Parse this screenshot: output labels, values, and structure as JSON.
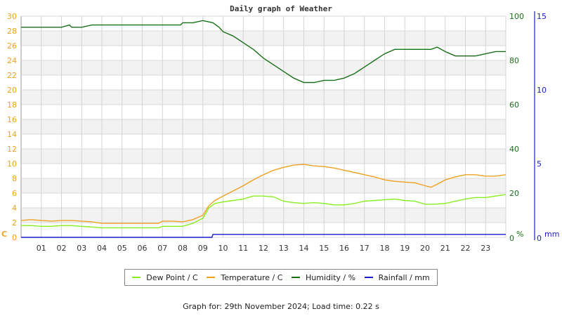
{
  "chart_data": {
    "type": "line",
    "title": "Daily graph of Weather",
    "xlabel": "",
    "x_ticks": [
      "01",
      "02",
      "03",
      "04",
      "05",
      "06",
      "07",
      "08",
      "09",
      "10",
      "11",
      "12",
      "13",
      "14",
      "15",
      "16",
      "17",
      "18",
      "19",
      "20",
      "21",
      "22",
      "23"
    ],
    "x_range_hours": [
      0,
      24
    ],
    "axes": {
      "left": {
        "label": "C",
        "ticks": [
          0,
          2,
          4,
          6,
          8,
          10,
          12,
          14,
          16,
          18,
          20,
          22,
          24,
          26,
          28,
          30
        ],
        "ylim": [
          0,
          30
        ],
        "color": "#f0a020"
      },
      "humidity": {
        "label": "%",
        "ticks": [
          0,
          20,
          40,
          60,
          80,
          100
        ],
        "ylim": [
          0,
          100
        ],
        "color": "#1a6e1a"
      },
      "rainfall": {
        "label": "mm",
        "ticks": [
          0,
          5,
          10,
          15
        ],
        "ylim": [
          0,
          15
        ],
        "color": "#1a1acc"
      }
    },
    "grid": true,
    "legend_position": "bottom",
    "series": [
      {
        "name": "Dew Point / C",
        "color": "#88ee22",
        "axis": "left",
        "x": [
          0,
          0.5,
          1,
          1.5,
          2,
          2.5,
          3,
          3.5,
          4,
          5,
          6,
          6.8,
          7,
          7.5,
          8,
          8.5,
          9,
          9.3,
          9.6,
          10,
          10.5,
          11,
          11.5,
          12,
          12.5,
          13,
          13.5,
          14,
          14.5,
          15,
          15.5,
          16,
          16.5,
          17,
          17.5,
          18,
          18.5,
          19,
          19.5,
          20,
          20.5,
          21,
          21.5,
          22,
          22.5,
          23,
          23.5,
          24
        ],
        "values": [
          1.6,
          1.6,
          1.5,
          1.5,
          1.6,
          1.6,
          1.5,
          1.4,
          1.3,
          1.3,
          1.3,
          1.3,
          1.5,
          1.5,
          1.5,
          1.9,
          2.6,
          4.0,
          4.6,
          4.8,
          5.0,
          5.2,
          5.6,
          5.6,
          5.5,
          4.9,
          4.7,
          4.6,
          4.7,
          4.6,
          4.4,
          4.4,
          4.6,
          4.9,
          5.0,
          5.1,
          5.2,
          5.0,
          4.9,
          4.5,
          4.5,
          4.6,
          4.9,
          5.2,
          5.4,
          5.4,
          5.6,
          5.8
        ]
      },
      {
        "name": "Temperature / C",
        "color": "#f0a020",
        "axis": "left",
        "x": [
          0,
          0.5,
          1,
          1.5,
          2,
          2.5,
          3,
          3.5,
          4,
          5,
          6,
          6.8,
          7,
          7.5,
          8,
          8.5,
          9,
          9.3,
          9.6,
          10,
          10.5,
          11,
          11.5,
          12,
          12.5,
          13,
          13.5,
          14,
          14.5,
          15,
          15.5,
          16,
          16.5,
          17,
          17.5,
          18,
          18.5,
          19,
          19.5,
          20,
          20.3,
          20.6,
          21,
          21.5,
          22,
          22.5,
          23,
          23.5,
          24
        ],
        "values": [
          2.3,
          2.4,
          2.3,
          2.2,
          2.3,
          2.3,
          2.2,
          2.1,
          1.9,
          1.9,
          1.9,
          1.9,
          2.2,
          2.2,
          2.1,
          2.4,
          3.0,
          4.3,
          5.0,
          5.6,
          6.3,
          7.0,
          7.8,
          8.5,
          9.1,
          9.5,
          9.8,
          9.9,
          9.7,
          9.6,
          9.4,
          9.1,
          8.8,
          8.5,
          8.2,
          7.8,
          7.6,
          7.5,
          7.4,
          7.0,
          6.8,
          7.2,
          7.8,
          8.2,
          8.5,
          8.5,
          8.3,
          8.3,
          8.5
        ]
      },
      {
        "name": "Humidity / %",
        "color": "#1a6e1a",
        "axis": "humidity",
        "x": [
          0,
          1,
          2,
          2.4,
          2.5,
          3,
          3.5,
          4,
          5,
          6,
          7,
          7.9,
          8,
          8.5,
          9,
          9.5,
          9.8,
          10,
          10.5,
          11,
          11.5,
          12,
          12.5,
          13,
          13.5,
          14,
          14.5,
          15,
          15.5,
          16,
          16.5,
          17,
          17.5,
          18,
          18.5,
          19,
          19.5,
          20,
          20.3,
          20.6,
          21,
          21.5,
          22,
          22.5,
          23,
          23.5,
          24
        ],
        "values": [
          95,
          95,
          95,
          96,
          95,
          95,
          96,
          96,
          96,
          96,
          96,
          96,
          97,
          97,
          98,
          97,
          95,
          93,
          91,
          88,
          85,
          81,
          78,
          75,
          72,
          70,
          70,
          71,
          71,
          72,
          74,
          77,
          80,
          83,
          85,
          85,
          85,
          85,
          85,
          86,
          84,
          82,
          82,
          82,
          83,
          84,
          84
        ]
      },
      {
        "name": "Rainfall / mm",
        "color": "#1a1acc",
        "axis": "rainfall",
        "x": [
          0,
          9.45,
          9.5,
          24
        ],
        "values": [
          0,
          0,
          0.2,
          0.2
        ]
      }
    ]
  },
  "footer": {
    "text": "Graph for: 29th November 2024; Load time: 0.22 s"
  }
}
